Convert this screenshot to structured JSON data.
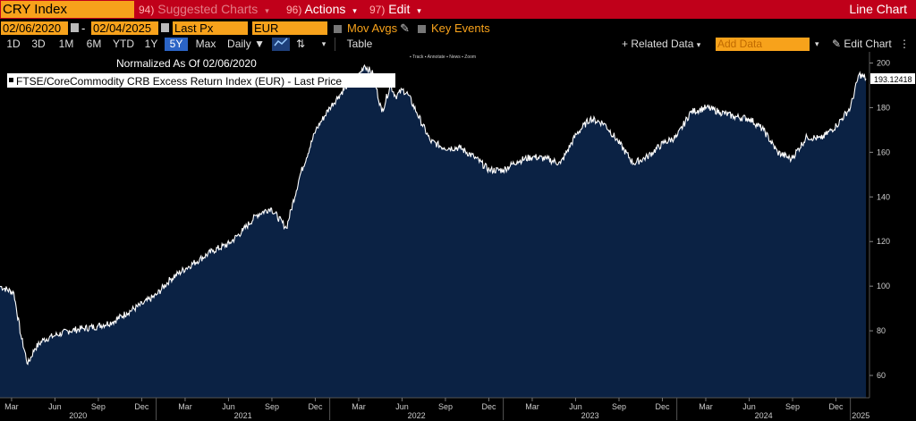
{
  "toolbar": {
    "ticker": "CRY Index",
    "suggested_num": "94)",
    "suggested_label": "Suggested Charts",
    "actions_num": "96)",
    "actions_label": "Actions",
    "edit_num": "97)",
    "edit_label": "Edit",
    "chart_type": "Line Chart"
  },
  "controls": {
    "start_date": "02/06/2020",
    "end_date": "02/04/2025",
    "date_sep": "-",
    "field": "Last Px",
    "currency": "EUR",
    "mov_avgs": "Mov Avgs",
    "key_events": "Key Events"
  },
  "range": {
    "buttons": [
      "1D",
      "3D",
      "1M",
      "6M",
      "YTD",
      "1Y",
      "5Y",
      "Max"
    ],
    "selected": "5Y",
    "frequency": "Daily",
    "table": "Table",
    "related_data": "+ Related Data",
    "add_data_placeholder": "Add Data",
    "edit_chart": "Edit Chart"
  },
  "chart_data": {
    "type": "area",
    "title": "Normalized As Of 02/06/2020",
    "legend": "FTSE/CoreCommodity CRB Excess Return Index (EUR) - Last Price",
    "last_value_label": "193.12418",
    "xlabel": "",
    "ylabel": "",
    "ylim": [
      50,
      205
    ],
    "y_ticks": [
      60,
      80,
      100,
      120,
      140,
      160,
      180,
      200
    ],
    "x_month_labels": [
      "Mar",
      "Jun",
      "Sep",
      "Dec",
      "Mar",
      "Jun",
      "Sep",
      "Dec",
      "Mar",
      "Jun",
      "Sep",
      "Dec",
      "Mar",
      "Jun",
      "Sep",
      "Dec",
      "Mar",
      "Jun",
      "Sep",
      "Dec"
    ],
    "x_year_labels": [
      "2020",
      "2021",
      "2022",
      "2023",
      "2024",
      "2025"
    ],
    "series": [
      {
        "name": "FTSE/CoreCommodity CRB Excess Return Index (EUR) - Last Price",
        "x": [
          2020.1,
          2020.18,
          2020.22,
          2020.26,
          2020.3,
          2020.35,
          2020.42,
          2020.5,
          2020.58,
          2020.66,
          2020.75,
          2020.83,
          2020.92,
          2021.0,
          2021.08,
          2021.17,
          2021.25,
          2021.33,
          2021.42,
          2021.5,
          2021.58,
          2021.66,
          2021.75,
          2021.83,
          2021.92,
          2022.0,
          2022.05,
          2022.1,
          2022.15,
          2022.2,
          2022.25,
          2022.3,
          2022.35,
          2022.38,
          2022.42,
          2022.45,
          2022.5,
          2022.58,
          2022.66,
          2022.75,
          2022.83,
          2022.92,
          2023.0,
          2023.08,
          2023.17,
          2023.25,
          2023.33,
          2023.42,
          2023.5,
          2023.58,
          2023.66,
          2023.75,
          2023.83,
          2023.92,
          2024.0,
          2024.08,
          2024.17,
          2024.25,
          2024.33,
          2024.42,
          2024.5,
          2024.58,
          2024.66,
          2024.75,
          2024.83,
          2024.92,
          2025.0,
          2025.05,
          2025.09
        ],
        "values": [
          100,
          97,
          78,
          65,
          72,
          76,
          78,
          80,
          81,
          82,
          84,
          88,
          92,
          96,
          103,
          108,
          112,
          116,
          119,
          125,
          132,
          135,
          126,
          150,
          170,
          180,
          185,
          190,
          192,
          199,
          195,
          178,
          190,
          185,
          188,
          186,
          178,
          165,
          162,
          162,
          158,
          152,
          152,
          156,
          158,
          157,
          155,
          168,
          175,
          173,
          165,
          155,
          158,
          164,
          167,
          178,
          180,
          178,
          176,
          175,
          170,
          160,
          157,
          167,
          166,
          172,
          180,
          195,
          193
        ]
      }
    ]
  }
}
